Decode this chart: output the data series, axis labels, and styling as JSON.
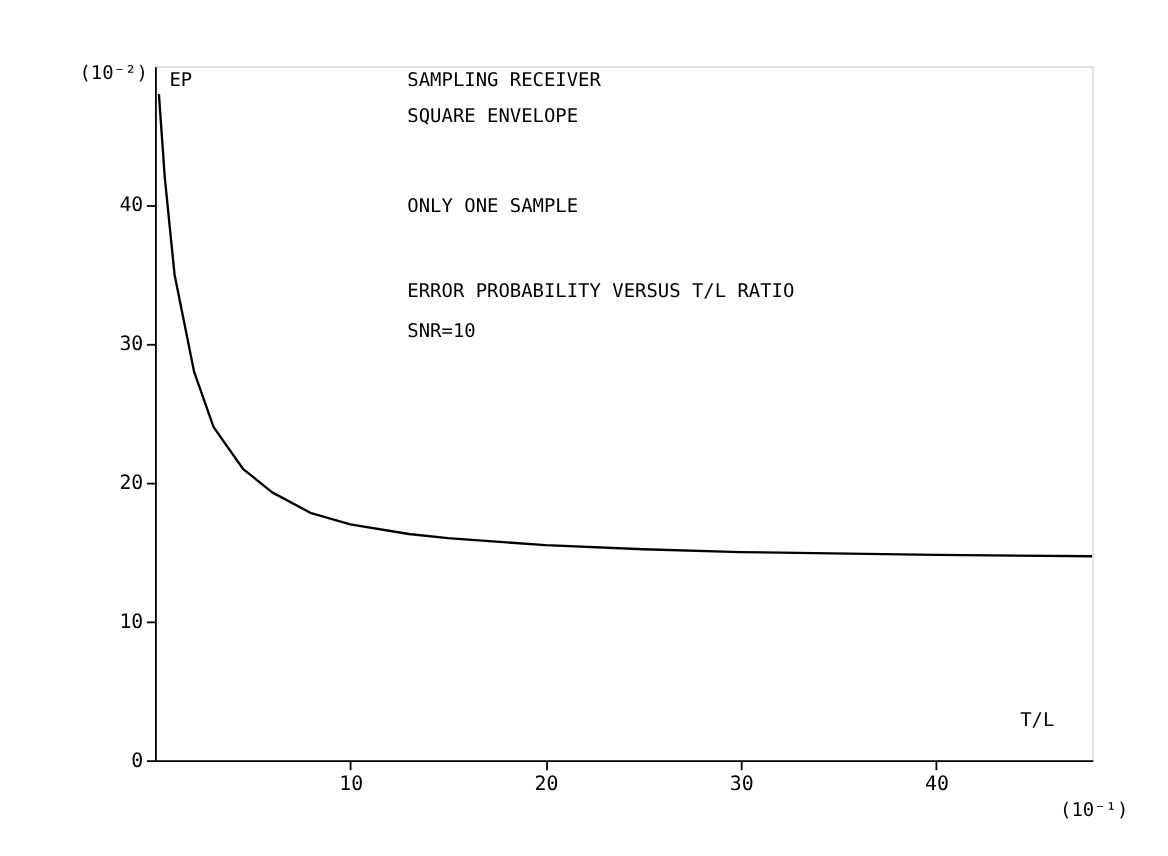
{
  "chart_data": {
    "type": "line",
    "xlabel": "T/L",
    "ylabel": "EP",
    "annotations": [
      "(10⁻²)",
      "(10⁻¹)",
      "SAMPLING RECEIVER",
      "SQUARE ENVELOPE",
      "ONLY ONE SAMPLE",
      "ERROR PROBABILITY VERSUS T/L RATIO",
      "SNR=10"
    ],
    "x": [
      0.2,
      0.5,
      1,
      2,
      3,
      4.5,
      6,
      8,
      10,
      13,
      15,
      20,
      25,
      30,
      40,
      48
    ],
    "series": [
      {
        "color": "#000000",
        "values": [
          48,
          42,
          35,
          28,
          24,
          21,
          19.3,
          17.8,
          17,
          16.3,
          16,
          15.5,
          15.2,
          15,
          14.8,
          14.7
        ]
      }
    ],
    "xlim": [
      0,
      48
    ],
    "ylim": [
      0,
      50
    ],
    "xticks": [
      10,
      20,
      30,
      40
    ],
    "yticks": [
      0,
      10,
      20,
      30,
      40
    ],
    "grid": false,
    "marker": "none",
    "line_style": "solid"
  }
}
